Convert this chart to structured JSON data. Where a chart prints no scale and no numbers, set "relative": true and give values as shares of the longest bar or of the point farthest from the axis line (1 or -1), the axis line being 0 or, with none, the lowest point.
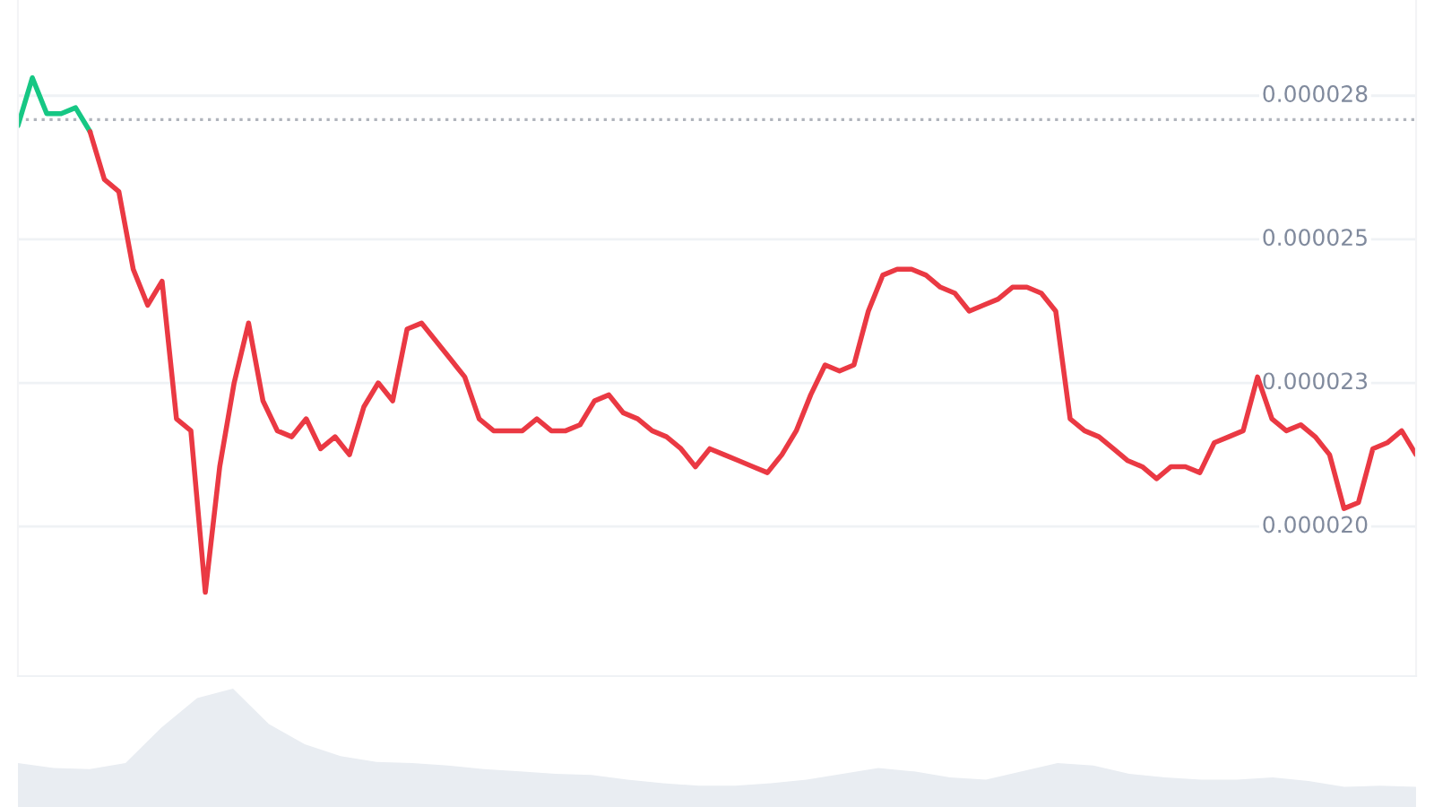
{
  "chart_data": [
    {
      "type": "line",
      "categories": [
        null,
        null,
        null,
        null,
        null,
        null,
        null,
        null,
        null,
        null,
        null,
        null,
        null,
        null,
        null,
        null,
        null,
        null,
        null,
        null,
        null,
        null,
        null,
        null,
        null,
        null,
        null,
        null,
        null,
        null,
        null,
        null,
        null,
        null,
        null,
        null,
        null,
        null,
        null,
        null,
        null,
        null,
        null,
        null,
        null,
        null,
        null,
        null,
        null,
        null,
        null,
        null,
        null,
        null,
        null,
        null,
        null,
        null,
        null,
        null,
        null,
        null,
        null,
        null,
        null,
        null,
        null,
        null,
        null,
        null,
        null,
        null,
        null,
        null,
        null,
        null,
        null,
        null,
        null,
        null,
        null,
        null,
        null,
        null,
        null,
        null,
        null,
        null,
        null,
        null,
        null,
        null,
        null,
        null,
        null,
        null,
        null,
        null
      ],
      "series": [
        {
          "color": "#16c784",
          "values": [
            2.71e-05,
            2.79e-05,
            2.73e-05,
            2.73e-05,
            2.74e-05,
            2.7e-05,
            null,
            null,
            null,
            null,
            null,
            null,
            null,
            null,
            null,
            null,
            null,
            null,
            null,
            null,
            null,
            null,
            null,
            null,
            null,
            null,
            null,
            null,
            null,
            null,
            null,
            null,
            null,
            null,
            null,
            null,
            null,
            null,
            null,
            null,
            null,
            null,
            null,
            null,
            null,
            null,
            null,
            null,
            null,
            null,
            null,
            null,
            null,
            null,
            null,
            null,
            null,
            null,
            null,
            null,
            null,
            null,
            null,
            null,
            null,
            null,
            null,
            null,
            null,
            null,
            null,
            null,
            null,
            null,
            null,
            null,
            null,
            null,
            null,
            null,
            null,
            null,
            null,
            null,
            null,
            null,
            null,
            null,
            null,
            null,
            null,
            null,
            null,
            null,
            null,
            null,
            null,
            null
          ]
        },
        {
          "color": "#ea3943",
          "values": [
            null,
            null,
            null,
            null,
            null,
            2.7e-05,
            2.62e-05,
            2.6e-05,
            2.47e-05,
            2.41e-05,
            2.45e-05,
            2.22e-05,
            2.2e-05,
            1.93e-05,
            2.14e-05,
            2.28e-05,
            2.38e-05,
            2.25e-05,
            2.2e-05,
            2.19e-05,
            2.22e-05,
            2.17e-05,
            2.19e-05,
            2.16e-05,
            2.24e-05,
            2.28e-05,
            2.25e-05,
            2.37e-05,
            2.38e-05,
            2.35e-05,
            2.32e-05,
            2.29e-05,
            2.22e-05,
            2.2e-05,
            2.2e-05,
            2.2e-05,
            2.22e-05,
            2.2e-05,
            2.2e-05,
            2.21e-05,
            2.25e-05,
            2.26e-05,
            2.23e-05,
            2.22e-05,
            2.2e-05,
            2.19e-05,
            2.17e-05,
            2.14e-05,
            2.17e-05,
            2.16e-05,
            2.15e-05,
            2.14e-05,
            2.13e-05,
            2.16e-05,
            2.2e-05,
            2.26e-05,
            2.31e-05,
            2.3e-05,
            2.31e-05,
            2.4e-05,
            2.46e-05,
            2.47e-05,
            2.47e-05,
            2.46e-05,
            2.44e-05,
            2.43e-05,
            2.4e-05,
            2.41e-05,
            2.42e-05,
            2.44e-05,
            2.44e-05,
            2.43e-05,
            2.4e-05,
            2.22e-05,
            2.2e-05,
            2.19e-05,
            2.17e-05,
            2.15e-05,
            2.14e-05,
            2.12e-05,
            2.14e-05,
            2.14e-05,
            2.13e-05,
            2.18e-05,
            2.19e-05,
            2.2e-05,
            2.29e-05,
            2.22e-05,
            2.2e-05,
            2.21e-05,
            2.19e-05,
            2.16e-05,
            2.07e-05,
            2.08e-05,
            2.17e-05,
            2.18e-05,
            2.2e-05,
            2.16e-05
          ]
        }
      ],
      "ylim": [
        1.79e-05,
        2.92e-05
      ],
      "yticks": [
        {
          "value": 2.76e-05,
          "label": "0.000028"
        },
        {
          "value": 2.52e-05,
          "label": "0.000025"
        },
        {
          "value": 2.28e-05,
          "label": "0.000023"
        },
        {
          "value": 2.04e-05,
          "label": "0.000020"
        }
      ],
      "ref_lines": [
        {
          "axis": "y",
          "value": 2.72e-05,
          "color": "#b0b4bc",
          "line_style": "dotted"
        }
      ],
      "grid": "y",
      "tick_labels": "y"
    },
    {
      "type": "area",
      "relative": true,
      "tick_labels": false,
      "categories": [
        null,
        null,
        null,
        null,
        null,
        null,
        null,
        null,
        null,
        null,
        null,
        null,
        null,
        null,
        null,
        null,
        null,
        null,
        null,
        null,
        null,
        null,
        null,
        null,
        null,
        null,
        null,
        null,
        null,
        null,
        null,
        null,
        null,
        null,
        null,
        null,
        null,
        null,
        null,
        null
      ],
      "series": [
        {
          "color": "#e9edf2",
          "values": [
            0.37,
            0.33,
            0.32,
            0.37,
            0.67,
            0.92,
            1,
            0.7,
            0.53,
            0.43,
            0.38,
            0.37,
            0.35,
            0.32,
            0.3,
            0.28,
            0.27,
            0.23,
            0.2,
            0.18,
            0.18,
            0.2,
            0.23,
            0.28,
            0.33,
            0.3,
            0.25,
            0.23,
            0.3,
            0.37,
            0.35,
            0.28,
            0.25,
            0.23,
            0.23,
            0.25,
            0.22,
            0.17,
            0.18,
            0.17
          ]
        }
      ]
    }
  ]
}
